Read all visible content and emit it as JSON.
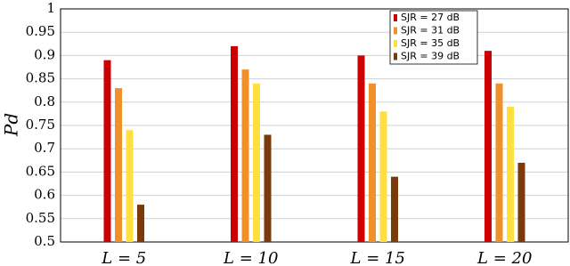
{
  "chart_data": {
    "type": "bar",
    "ylabel": "Pd",
    "categories": [
      "L = 5",
      "L = 10",
      "L = 15",
      "L = 20"
    ],
    "series": [
      {
        "name": "SJR = 27 dB",
        "color": "#cc0000",
        "values": [
          0.89,
          0.92,
          0.9,
          0.91
        ]
      },
      {
        "name": "SJR = 31 dB",
        "color": "#f0902a",
        "values": [
          0.83,
          0.87,
          0.84,
          0.84
        ]
      },
      {
        "name": "SJR = 35 dB",
        "color": "#ffe040",
        "values": [
          0.74,
          0.84,
          0.78,
          0.79
        ]
      },
      {
        "name": "SJR = 39 dB",
        "color": "#7a3a0a",
        "values": [
          0.58,
          0.73,
          0.64,
          0.67
        ]
      }
    ],
    "ylim": [
      0.5,
      1
    ],
    "yticks": [
      0.5,
      0.55,
      0.6,
      0.65,
      0.7,
      0.75,
      0.8,
      0.85,
      0.9,
      0.95,
      1
    ],
    "grid": true,
    "legend": "top-right"
  }
}
